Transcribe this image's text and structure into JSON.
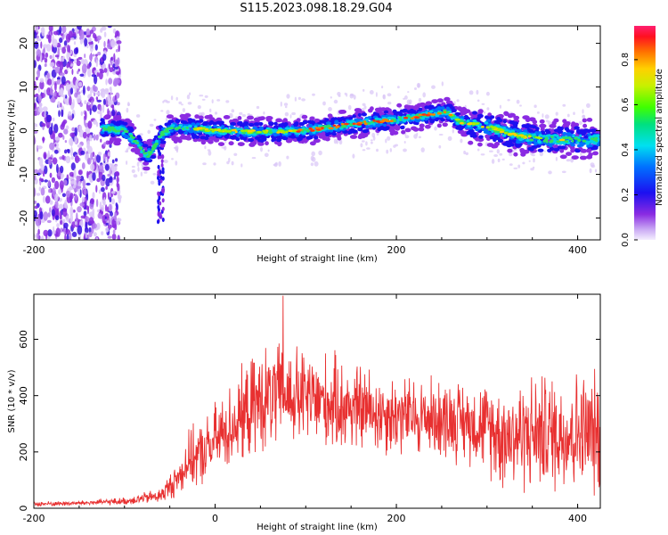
{
  "title": "S115.2023.098.18.29.G04",
  "chart_data": [
    {
      "type": "heatmap",
      "xlabel": "Height of straight line (km)",
      "ylabel": "Frequency (Hz)",
      "xlim": [
        -200,
        425
      ],
      "ylim": [
        -25,
        24
      ],
      "xticks": [
        -200,
        0,
        200,
        400
      ],
      "yticks": [
        -20,
        -10,
        0,
        10,
        20
      ],
      "ridge": {
        "x": [
          -120,
          -100,
          -85,
          -75,
          -68,
          -60,
          -50,
          -40,
          -20,
          0,
          50,
          100,
          150,
          200,
          230,
          255,
          270,
          300,
          330,
          360,
          400,
          425
        ],
        "freq": [
          0.5,
          0,
          -3,
          -6,
          -4,
          -1,
          0.5,
          0.5,
          0.5,
          0,
          -0.3,
          0,
          1.5,
          2.5,
          3.5,
          4.5,
          2,
          1,
          -1,
          -2,
          -2,
          -2
        ]
      },
      "colorbar": {
        "label": "Normalized spectral amplitude",
        "range": [
          0,
          0.95
        ],
        "ticks": [
          0.0,
          0.2,
          0.4,
          0.6,
          0.8
        ]
      },
      "grid": false
    },
    {
      "type": "line",
      "xlabel": "Height of straight line (km)",
      "ylabel": "SNR (10 * v/v)",
      "xlim": [
        -200,
        425
      ],
      "ylim": [
        0,
        760
      ],
      "xticks": [
        -200,
        0,
        200,
        400
      ],
      "yticks": [
        0,
        200,
        400,
        600
      ],
      "line_color": "#e83030",
      "envelope": {
        "x": [
          -200,
          -150,
          -100,
          -80,
          -60,
          -40,
          -30,
          -10,
          0,
          20,
          50,
          80,
          100,
          150,
          200,
          250,
          290,
          320,
          360,
          400,
          425
        ],
        "mean": [
          15,
          18,
          25,
          35,
          45,
          110,
          170,
          200,
          240,
          300,
          380,
          400,
          390,
          360,
          330,
          320,
          300,
          260,
          270,
          270,
          260
        ],
        "amplitude": [
          8,
          8,
          12,
          18,
          25,
          60,
          90,
          110,
          120,
          140,
          170,
          170,
          160,
          150,
          130,
          130,
          130,
          180,
          190,
          200,
          200
        ]
      },
      "peak": {
        "x": 75,
        "y": 755
      },
      "grid": false
    }
  ]
}
